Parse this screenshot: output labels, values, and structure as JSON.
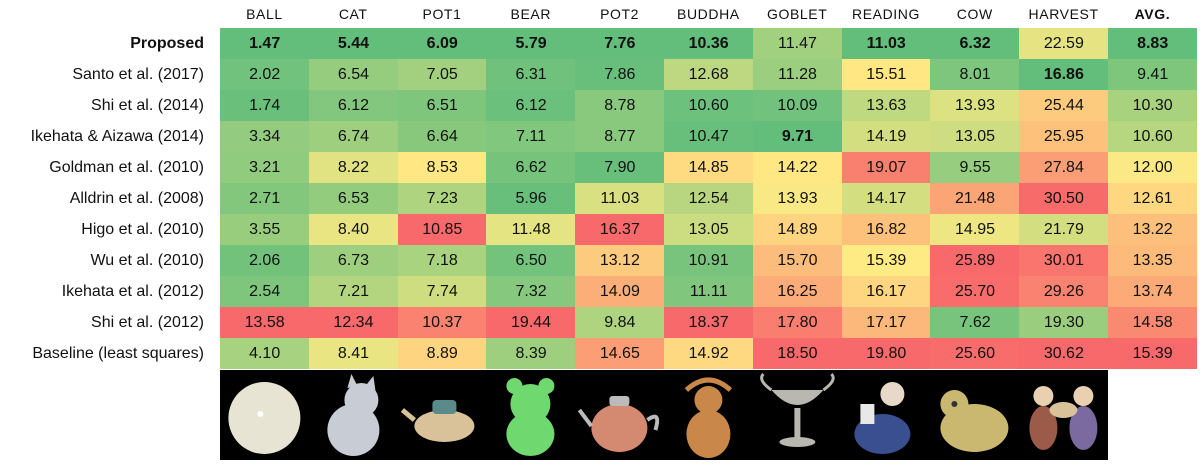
{
  "table": {
    "columns": [
      {
        "label": "BALL",
        "bold": false
      },
      {
        "label": "CAT",
        "bold": false
      },
      {
        "label": "POT1",
        "bold": false
      },
      {
        "label": "BEAR",
        "bold": false
      },
      {
        "label": "POT2",
        "bold": false
      },
      {
        "label": "BUDDHA",
        "bold": false
      },
      {
        "label": "GOBLET",
        "bold": false
      },
      {
        "label": "READING",
        "bold": false
      },
      {
        "label": "COW",
        "bold": false
      },
      {
        "label": "HARVEST",
        "bold": false
      },
      {
        "label": "AVG.",
        "bold": true
      }
    ],
    "rows": [
      {
        "method": "Proposed",
        "bold_label": true,
        "values": [
          "1.47",
          "5.44",
          "6.09",
          "5.79",
          "7.76",
          "10.36",
          "11.47",
          "11.03",
          "6.32",
          "22.59",
          "8.83"
        ],
        "bold": [
          true,
          true,
          true,
          true,
          true,
          true,
          false,
          true,
          true,
          false,
          true
        ]
      },
      {
        "method": "Santo et al. (2017)",
        "bold_label": false,
        "values": [
          "2.02",
          "6.54",
          "7.05",
          "6.31",
          "7.86",
          "12.68",
          "11.28",
          "15.51",
          "8.01",
          "16.86",
          "9.41"
        ],
        "bold": [
          false,
          false,
          false,
          false,
          false,
          false,
          false,
          false,
          false,
          true,
          false
        ]
      },
      {
        "method": "Shi et al. (2014)",
        "bold_label": false,
        "values": [
          "1.74",
          "6.12",
          "6.51",
          "6.12",
          "8.78",
          "10.60",
          "10.09",
          "13.63",
          "13.93",
          "25.44",
          "10.30"
        ],
        "bold": [
          false,
          false,
          false,
          false,
          false,
          false,
          false,
          false,
          false,
          false,
          false
        ]
      },
      {
        "method": "Ikehata & Aizawa (2014)",
        "bold_label": false,
        "values": [
          "3.34",
          "6.74",
          "6.64",
          "7.11",
          "8.77",
          "10.47",
          "9.71",
          "14.19",
          "13.05",
          "25.95",
          "10.60"
        ],
        "bold": [
          false,
          false,
          false,
          false,
          false,
          false,
          true,
          false,
          false,
          false,
          false
        ]
      },
      {
        "method": "Goldman et al. (2010)",
        "bold_label": false,
        "values": [
          "3.21",
          "8.22",
          "8.53",
          "6.62",
          "7.90",
          "14.85",
          "14.22",
          "19.07",
          "9.55",
          "27.84",
          "12.00"
        ],
        "bold": [
          false,
          false,
          false,
          false,
          false,
          false,
          false,
          false,
          false,
          false,
          false
        ]
      },
      {
        "method": "Alldrin et al. (2008)",
        "bold_label": false,
        "values": [
          "2.71",
          "6.53",
          "7.23",
          "5.96",
          "11.03",
          "12.54",
          "13.93",
          "14.17",
          "21.48",
          "30.50",
          "12.61"
        ],
        "bold": [
          false,
          false,
          false,
          false,
          false,
          false,
          false,
          false,
          false,
          false,
          false
        ]
      },
      {
        "method": "Higo et al. (2010)",
        "bold_label": false,
        "values": [
          "3.55",
          "8.40",
          "10.85",
          "11.48",
          "16.37",
          "13.05",
          "14.89",
          "16.82",
          "14.95",
          "21.79",
          "13.22"
        ],
        "bold": [
          false,
          false,
          false,
          false,
          false,
          false,
          false,
          false,
          false,
          false,
          false
        ]
      },
      {
        "method": "Wu et al. (2010)",
        "bold_label": false,
        "values": [
          "2.06",
          "6.73",
          "7.18",
          "6.50",
          "13.12",
          "10.91",
          "15.70",
          "15.39",
          "25.89",
          "30.01",
          "13.35"
        ],
        "bold": [
          false,
          false,
          false,
          false,
          false,
          false,
          false,
          false,
          false,
          false,
          false
        ]
      },
      {
        "method": "Ikehata et al. (2012)",
        "bold_label": false,
        "values": [
          "2.54",
          "7.21",
          "7.74",
          "7.32",
          "14.09",
          "11.11",
          "16.25",
          "16.17",
          "25.70",
          "29.26",
          "13.74"
        ],
        "bold": [
          false,
          false,
          false,
          false,
          false,
          false,
          false,
          false,
          false,
          false,
          false
        ]
      },
      {
        "method": "Shi et al. (2012)",
        "bold_label": false,
        "values": [
          "13.58",
          "12.34",
          "10.37",
          "19.44",
          "9.84",
          "18.37",
          "17.80",
          "17.17",
          "7.62",
          "19.30",
          "14.58"
        ],
        "bold": [
          false,
          false,
          false,
          false,
          false,
          false,
          false,
          false,
          false,
          false,
          false
        ]
      },
      {
        "method": "Baseline (least squares)",
        "bold_label": false,
        "values": [
          "4.10",
          "8.41",
          "8.89",
          "8.39",
          "14.65",
          "14.92",
          "18.50",
          "19.80",
          "25.60",
          "30.62",
          "15.39"
        ],
        "bold": [
          false,
          false,
          false,
          false,
          false,
          false,
          false,
          false,
          false,
          false,
          false
        ]
      }
    ],
    "colors": {
      "low": "#63be7b",
      "mid": "#ffeb84",
      "high": "#f8696b",
      "text": "#111111"
    }
  },
  "chart_data": {
    "type": "heatmap",
    "x": [
      "BALL",
      "CAT",
      "POT1",
      "BEAR",
      "POT2",
      "BUDDHA",
      "GOBLET",
      "READING",
      "COW",
      "HARVEST",
      "AVG."
    ],
    "y": [
      "Proposed",
      "Santo et al. (2017)",
      "Shi et al. (2014)",
      "Ikehata & Aizawa (2014)",
      "Goldman et al. (2010)",
      "Alldrin et al. (2008)",
      "Higo et al. (2010)",
      "Wu et al. (2010)",
      "Ikehata et al. (2012)",
      "Shi et al. (2012)",
      "Baseline (least squares)"
    ],
    "values": [
      [
        1.47,
        5.44,
        6.09,
        5.79,
        7.76,
        10.36,
        11.47,
        11.03,
        6.32,
        22.59,
        8.83
      ],
      [
        2.02,
        6.54,
        7.05,
        6.31,
        7.86,
        12.68,
        11.28,
        15.51,
        8.01,
        16.86,
        9.41
      ],
      [
        1.74,
        6.12,
        6.51,
        6.12,
        8.78,
        10.6,
        10.09,
        13.63,
        13.93,
        25.44,
        10.3
      ],
      [
        3.34,
        6.74,
        6.64,
        7.11,
        8.77,
        10.47,
        9.71,
        14.19,
        13.05,
        25.95,
        10.6
      ],
      [
        3.21,
        8.22,
        8.53,
        6.62,
        7.9,
        14.85,
        14.22,
        19.07,
        9.55,
        27.84,
        12.0
      ],
      [
        2.71,
        6.53,
        7.23,
        5.96,
        11.03,
        12.54,
        13.93,
        14.17,
        21.48,
        30.5,
        12.61
      ],
      [
        3.55,
        8.4,
        10.85,
        11.48,
        16.37,
        13.05,
        14.89,
        16.82,
        14.95,
        21.79,
        13.22
      ],
      [
        2.06,
        6.73,
        7.18,
        6.5,
        13.12,
        10.91,
        15.7,
        15.39,
        25.89,
        30.01,
        13.35
      ],
      [
        2.54,
        7.21,
        7.74,
        7.32,
        14.09,
        11.11,
        16.25,
        16.17,
        25.7,
        29.26,
        13.74
      ],
      [
        13.58,
        12.34,
        10.37,
        19.44,
        9.84,
        18.37,
        17.8,
        17.17,
        7.62,
        19.3,
        14.58
      ],
      [
        4.1,
        8.41,
        8.89,
        8.39,
        14.65,
        14.92,
        18.5,
        19.8,
        25.6,
        30.62,
        15.39
      ]
    ],
    "colormap": "green-yellow-red (low to high)",
    "legend": "none",
    "grid": false
  },
  "thumbnails": [
    {
      "object": "ball",
      "color": "#e8e4d4"
    },
    {
      "object": "cat",
      "color": "#c8ccd4"
    },
    {
      "object": "pot1",
      "color": "#d9c29a"
    },
    {
      "object": "bear",
      "color": "#6fd96f"
    },
    {
      "object": "pot2",
      "color": "#d48a70"
    },
    {
      "object": "buddha",
      "color": "#c9874a"
    },
    {
      "object": "goblet",
      "color": "#b8b8b0"
    },
    {
      "object": "reading",
      "color": "#3a4f8f"
    },
    {
      "object": "cow",
      "color": "#cbb870"
    },
    {
      "object": "harvest",
      "color": "#9c5a48"
    }
  ]
}
